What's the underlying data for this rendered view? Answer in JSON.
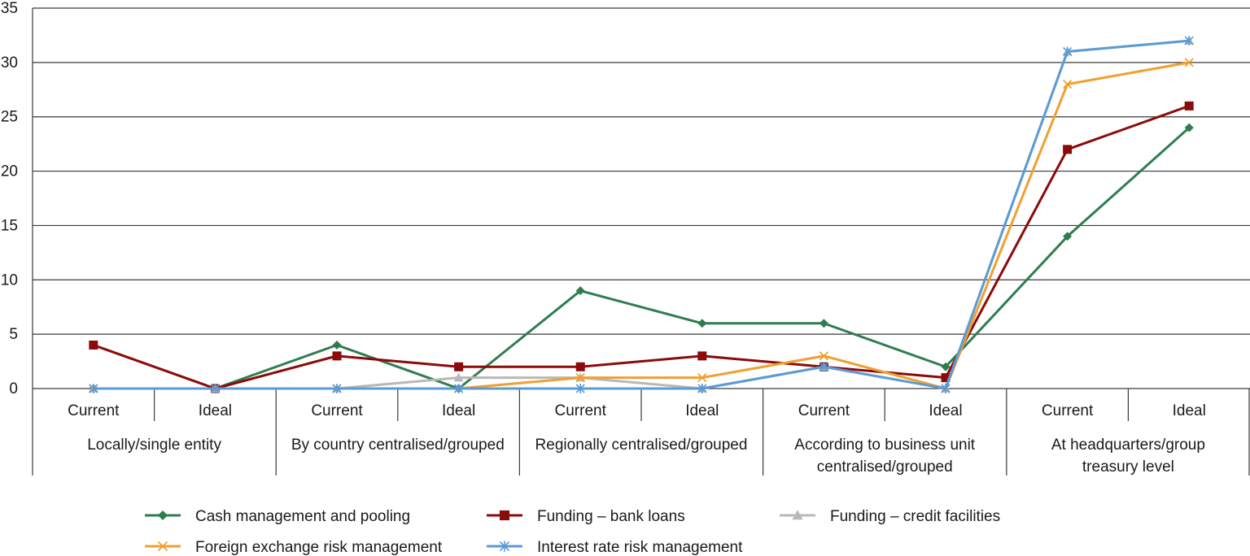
{
  "chart_data": {
    "type": "line",
    "title": "",
    "xlabel": "",
    "ylabel": "",
    "ylim": [
      0,
      35
    ],
    "yticks": [
      0,
      5,
      10,
      15,
      20,
      25,
      30,
      35
    ],
    "grid": true,
    "legend_position": "bottom",
    "categories": [
      {
        "sub": "Current",
        "group": "Locally/single entity"
      },
      {
        "sub": "Ideal",
        "group": "Locally/single entity"
      },
      {
        "sub": "Current",
        "group": "By country centralised/grouped"
      },
      {
        "sub": "Ideal",
        "group": "By country centralised/grouped"
      },
      {
        "sub": "Current",
        "group": "Regionally centralised/grouped"
      },
      {
        "sub": "Ideal",
        "group": "Regionally centralised/grouped"
      },
      {
        "sub": "Current",
        "group": "According to business unit centralised/grouped"
      },
      {
        "sub": "Ideal",
        "group": "According to business unit centralised/grouped"
      },
      {
        "sub": "Current",
        "group": "At headquarters/group treasury level"
      },
      {
        "sub": "Ideal",
        "group": "At headquarters/group treasury level"
      }
    ],
    "groups": [
      {
        "lines": [
          "Locally/single entity"
        ]
      },
      {
        "lines": [
          "By country centralised/grouped"
        ]
      },
      {
        "lines": [
          "Regionally centralised/grouped"
        ]
      },
      {
        "lines": [
          "According to business unit",
          "centralised/grouped"
        ]
      },
      {
        "lines": [
          "At headquarters/group",
          "treasury level"
        ]
      }
    ],
    "series": [
      {
        "name": "Cash management and pooling",
        "color": "#2e7d4f",
        "marker": "diamond",
        "values": [
          0,
          0,
          4,
          0,
          9,
          6,
          6,
          2,
          14,
          24
        ]
      },
      {
        "name": "Funding – bank loans",
        "color": "#8b0a0a",
        "marker": "square",
        "values": [
          4,
          0,
          3,
          2,
          2,
          3,
          2,
          1,
          22,
          26
        ]
      },
      {
        "name": "Funding – credit facilities",
        "color": "#b8b8b8",
        "marker": "triangle",
        "values": [
          0,
          0,
          0,
          1,
          1,
          0,
          2,
          0,
          31,
          32
        ]
      },
      {
        "name": "Foreign exchange risk management",
        "color": "#f0a030",
        "marker": "x",
        "values": [
          0,
          0,
          0,
          0,
          1,
          1,
          3,
          0,
          28,
          30
        ]
      },
      {
        "name": "Interest rate risk management",
        "color": "#5b9bd5",
        "marker": "star",
        "values": [
          0,
          0,
          0,
          0,
          0,
          0,
          2,
          0,
          31,
          32
        ]
      }
    ]
  }
}
